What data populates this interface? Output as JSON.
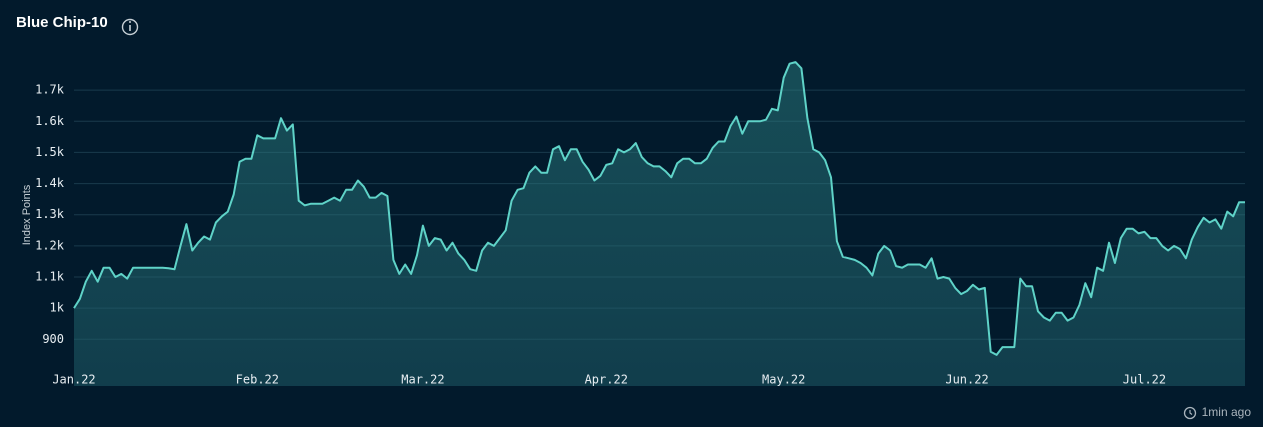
{
  "chart_data": {
    "type": "area",
    "title": "Blue Chip-10",
    "y_label": "Index Points",
    "footer": "1min ago",
    "color": "#5fd3c8",
    "grid": true,
    "ylim": [
      750,
      1800
    ],
    "yticks": [
      900,
      {
        "value": 1000,
        "label": "1k"
      },
      {
        "value": 1100,
        "label": "1.1k"
      },
      {
        "value": 1200,
        "label": "1.2k"
      },
      {
        "value": 1300,
        "label": "1.3k"
      },
      {
        "value": 1400,
        "label": "1.4k"
      },
      {
        "value": 1500,
        "label": "1.5k"
      },
      {
        "value": 1600,
        "label": "1.6k"
      },
      {
        "value": 1700,
        "label": "1.7k"
      }
    ],
    "xlim": [
      0,
      198
    ],
    "xticks": [
      {
        "value": 0,
        "label": "Jan.22"
      },
      {
        "value": 31,
        "label": "Feb.22"
      },
      {
        "value": 59,
        "label": "Mar.22"
      },
      {
        "value": 90,
        "label": "Apr.22"
      },
      {
        "value": 120,
        "label": "May.22"
      },
      {
        "value": 151,
        "label": "Jun.22"
      },
      {
        "value": 181,
        "label": "Jul.22"
      }
    ],
    "values": [
      1000,
      1030,
      1085,
      1120,
      1085,
      1130,
      1130,
      1100,
      1110,
      1095,
      1130,
      1130,
      1130,
      1130,
      1130,
      1130,
      1128,
      1125,
      1200,
      1270,
      1185,
      1210,
      1230,
      1220,
      1275,
      1295,
      1310,
      1365,
      1470,
      1480,
      1480,
      1555,
      1545,
      1545,
      1545,
      1610,
      1570,
      1590,
      1345,
      1330,
      1335,
      1335,
      1335,
      1345,
      1355,
      1345,
      1380,
      1380,
      1410,
      1390,
      1355,
      1355,
      1370,
      1360,
      1155,
      1110,
      1140,
      1110,
      1170,
      1265,
      1200,
      1225,
      1220,
      1185,
      1210,
      1175,
      1155,
      1125,
      1120,
      1185,
      1210,
      1200,
      1225,
      1250,
      1345,
      1380,
      1385,
      1435,
      1455,
      1435,
      1435,
      1510,
      1520,
      1475,
      1510,
      1510,
      1470,
      1445,
      1410,
      1425,
      1460,
      1465,
      1510,
      1500,
      1510,
      1530,
      1485,
      1465,
      1455,
      1455,
      1440,
      1420,
      1465,
      1480,
      1480,
      1465,
      1465,
      1480,
      1515,
      1535,
      1535,
      1585,
      1615,
      1560,
      1600,
      1600,
      1600,
      1605,
      1640,
      1635,
      1740,
      1785,
      1790,
      1770,
      1610,
      1510,
      1500,
      1475,
      1420,
      1215,
      1165,
      1160,
      1155,
      1145,
      1130,
      1105,
      1175,
      1200,
      1185,
      1135,
      1130,
      1140,
      1140,
      1140,
      1130,
      1160,
      1095,
      1100,
      1095,
      1065,
      1045,
      1055,
      1075,
      1060,
      1065,
      860,
      850,
      875,
      875,
      875,
      1095,
      1070,
      1070,
      990,
      970,
      960,
      985,
      985,
      960,
      970,
      1010,
      1080,
      1035,
      1130,
      1120,
      1210,
      1145,
      1225,
      1255,
      1255,
      1240,
      1245,
      1225,
      1225,
      1200,
      1185,
      1200,
      1190,
      1160,
      1220,
      1260,
      1290,
      1275,
      1285,
      1255,
      1310,
      1295,
      1340,
      1340
    ]
  }
}
